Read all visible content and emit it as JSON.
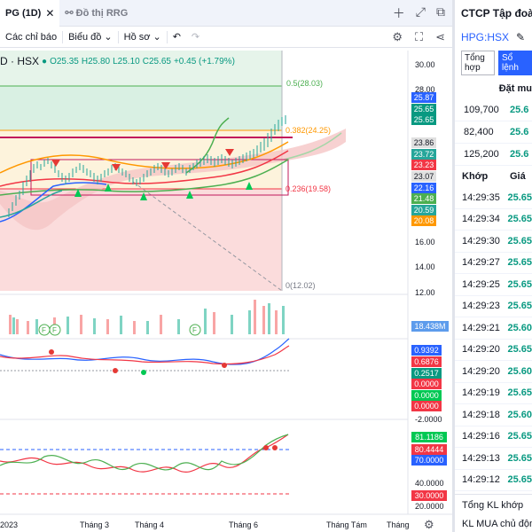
{
  "tabs": {
    "active": "PG (1D)",
    "other": "Đồ thị RRG"
  },
  "toolbar": {
    "indicators": "Các chỉ báo",
    "chart": "Biểu đồ",
    "profile": "Hồ sơ"
  },
  "legend": {
    "symbol": "D · HSX",
    "o": "O25.35",
    "h": "H25.80",
    "l": "L25.10",
    "c": "C25.65",
    "chg": "+0.45 (+1.79%)"
  },
  "fib": {
    "f05": "0.5(28.03)",
    "f0382": "0.382(24.25)",
    "f0236": "0.236(19.58)",
    "f0": "0(12.02)"
  },
  "price_axis": [
    "30.00",
    "28.00",
    "16.00",
    "14.00",
    "12.00"
  ],
  "price_labels": [
    {
      "text": "25.87",
      "color": "#2962ff"
    },
    {
      "text": "25.65",
      "color": "#089981"
    },
    {
      "text": "25.65",
      "color": "#089981"
    },
    {
      "text": "23.86",
      "color": "#e0e0e0"
    },
    {
      "text": "23.72",
      "color": "#26a69a"
    },
    {
      "text": "23.23",
      "color": "#f23645"
    },
    {
      "text": "23.07",
      "color": "#e0e0e0"
    },
    {
      "text": "22.16",
      "color": "#2962ff"
    },
    {
      "text": "21.48",
      "color": "#4caf50"
    },
    {
      "text": "20.59",
      "color": "#26a69a"
    },
    {
      "text": "20.08",
      "color": "#ff9800"
    }
  ],
  "volume_label": "18.438M",
  "macd_labels": [
    {
      "text": "0.9392",
      "color": "#2962ff"
    },
    {
      "text": "0.6876",
      "color": "#f23645"
    },
    {
      "text": "0.2517",
      "color": "#089981"
    },
    {
      "text": "0.0000",
      "color": "#f23645"
    },
    {
      "text": "0.0000",
      "color": "#00c853"
    },
    {
      "text": "0.0000",
      "color": "#f23645"
    }
  ],
  "macd_axis": "-2.0000",
  "rsi_labels": [
    {
      "text": "81.1186",
      "color": "#00c853"
    },
    {
      "text": "80.4444",
      "color": "#f23645"
    },
    {
      "text": "70.0000",
      "color": "#2962ff"
    }
  ],
  "rsi_axis": [
    "40.0000",
    "20.0000"
  ],
  "rsi_30": "30.0000",
  "x_axis": [
    "2023",
    "Tháng 3",
    "Tháng 4",
    "Tháng 6",
    "Tháng Tám",
    "Tháng"
  ],
  "right": {
    "title": "CTCP Tập đoà",
    "symbol": "HPG:HSX",
    "tab1": "Tổng hợp",
    "tab2": "Sổ lệnh",
    "col_head": "Đặt mu",
    "book": [
      {
        "vol": "109,700",
        "price": "25.6"
      },
      {
        "vol": "82,400",
        "price": "25.6"
      },
      {
        "vol": "125,200",
        "price": "25.6"
      }
    ],
    "match_head": "Khớp",
    "price_head": "Giá",
    "trades": [
      {
        "time": "14:29:35",
        "price": "25.65"
      },
      {
        "time": "14:29:34",
        "price": "25.65"
      },
      {
        "time": "14:29:30",
        "price": "25.65"
      },
      {
        "time": "14:29:27",
        "price": "25.65"
      },
      {
        "time": "14:29:25",
        "price": "25.65"
      },
      {
        "time": "14:29:23",
        "price": "25.65"
      },
      {
        "time": "14:29:21",
        "price": "25.60"
      },
      {
        "time": "14:29:20",
        "price": "25.65"
      },
      {
        "time": "14:29:20",
        "price": "25.60"
      },
      {
        "time": "14:29:19",
        "price": "25.65"
      },
      {
        "time": "14:29:18",
        "price": "25.60"
      },
      {
        "time": "14:29:16",
        "price": "25.65"
      },
      {
        "time": "14:29:13",
        "price": "25.65"
      },
      {
        "time": "14:29:12",
        "price": "25.65"
      }
    ],
    "foot1": "Tổng KL khớp",
    "foot2": "KL MUA chủ động"
  }
}
